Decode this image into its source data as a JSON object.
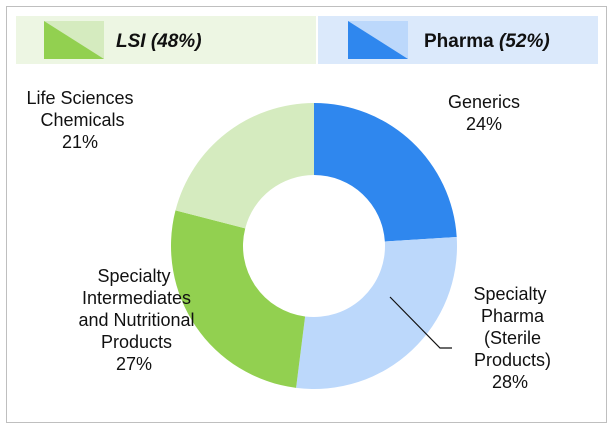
{
  "chart_data": {
    "type": "donut",
    "categories": [
      "Generics",
      "Specialty Pharma (Sterile Products)",
      "Specialty Intermediates and Nutritional Products",
      "Life Sciences Chemicals"
    ],
    "values": [
      24,
      28,
      27,
      21
    ],
    "value_labels": [
      "24%",
      "28%",
      "27%",
      "21%"
    ],
    "colors": [
      "#2f87ee",
      "#bcd8fb",
      "#92d050",
      "#d5ebbf"
    ],
    "groups": [
      {
        "name": "LSI",
        "label": "(48%)",
        "color": "#92d050",
        "light": "#d5ebbf",
        "background": "#edf6e3",
        "text_color": "#5e8f2c"
      },
      {
        "name": "Pharma",
        "label": "(52%)",
        "color": "#2f87ee",
        "light": "#bcd8fb",
        "background": "#dbe9fb",
        "text_color": "#1f4f9c"
      }
    ]
  }
}
